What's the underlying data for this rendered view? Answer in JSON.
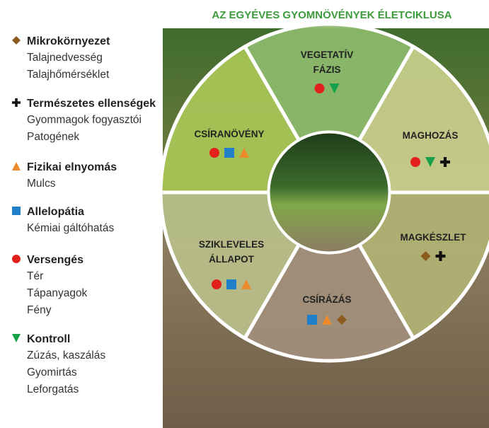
{
  "header": {
    "title": "AZ EGYÉVES GYOMNÖVÉNYEK ÉLETCIKLUSA"
  },
  "legend": [
    {
      "name": "Mikrokörnyezet",
      "entries": [
        "Talajnedvesség",
        "Talajhőmérséklet"
      ]
    },
    {
      "name": "Természetes ellenségek",
      "entries": [
        "Gyommagok fogyasztói",
        "Patogének"
      ]
    },
    {
      "name": "Fizikai elnyomás",
      "entries": [
        "Mulcs"
      ]
    },
    {
      "name": "Allelopátia",
      "entries": [
        "Kémiai gáltóhatás"
      ]
    },
    {
      "name": "Versengés",
      "entries": [
        "Tér",
        "Tápanyagok",
        "Fény"
      ]
    },
    {
      "name": "Kontroll",
      "entries": [
        "Zúzás, kaszálás",
        "Gyomirtás",
        "Leforgatás"
      ]
    }
  ],
  "segments": [
    {
      "label": [
        "VEGETATÍV",
        "FÁZIS"
      ]
    },
    {
      "label": [
        "MAGHOZÁS"
      ]
    },
    {
      "label": [
        "MAGKÉSZLET"
      ]
    },
    {
      "label": [
        "CSÍRÁZÁS"
      ]
    },
    {
      "label": [
        "SZIKLEVELES",
        "ÁLLAPOT"
      ]
    },
    {
      "label": [
        "CSÍRANÖVÉNY"
      ]
    }
  ]
}
